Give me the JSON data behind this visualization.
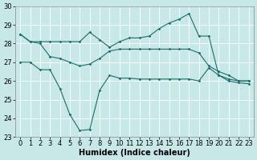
{
  "xlabel": "Humidex (Indice chaleur)",
  "bg_color": "#c8e8e8",
  "grid_color": "#ffffff",
  "line_color": "#1a6e6a",
  "ylim": [
    23,
    30
  ],
  "xlim": [
    -0.5,
    23.5
  ],
  "yticks": [
    23,
    24,
    25,
    26,
    27,
    28,
    29,
    30
  ],
  "xticks": [
    0,
    1,
    2,
    3,
    4,
    5,
    6,
    7,
    8,
    9,
    10,
    11,
    12,
    13,
    14,
    15,
    16,
    17,
    18,
    19,
    20,
    21,
    22,
    23
  ],
  "line_max": [
    28.5,
    28.1,
    28.1,
    28.1,
    28.1,
    28.1,
    28.1,
    28.6,
    28.2,
    27.8,
    28.1,
    28.3,
    28.3,
    28.4,
    28.8,
    29.1,
    29.3,
    29.6,
    28.4,
    28.4,
    26.3,
    26.1,
    26.0,
    26.0
  ],
  "line_mean": [
    28.5,
    28.1,
    28.0,
    27.3,
    27.2,
    27.0,
    26.8,
    26.9,
    27.2,
    27.6,
    27.7,
    27.7,
    27.7,
    27.7,
    27.7,
    27.7,
    27.7,
    27.7,
    27.5,
    26.8,
    26.5,
    26.3,
    26.0,
    26.0
  ],
  "line_min": [
    27.0,
    27.0,
    26.6,
    26.6,
    25.6,
    24.2,
    23.35,
    23.4,
    25.5,
    26.3,
    26.15,
    26.15,
    26.1,
    26.1,
    26.1,
    26.1,
    26.1,
    26.1,
    26.0,
    26.7,
    26.3,
    26.0,
    25.9,
    25.85
  ],
  "markersize": 1.8,
  "linewidth": 0.8,
  "font_size": 6
}
